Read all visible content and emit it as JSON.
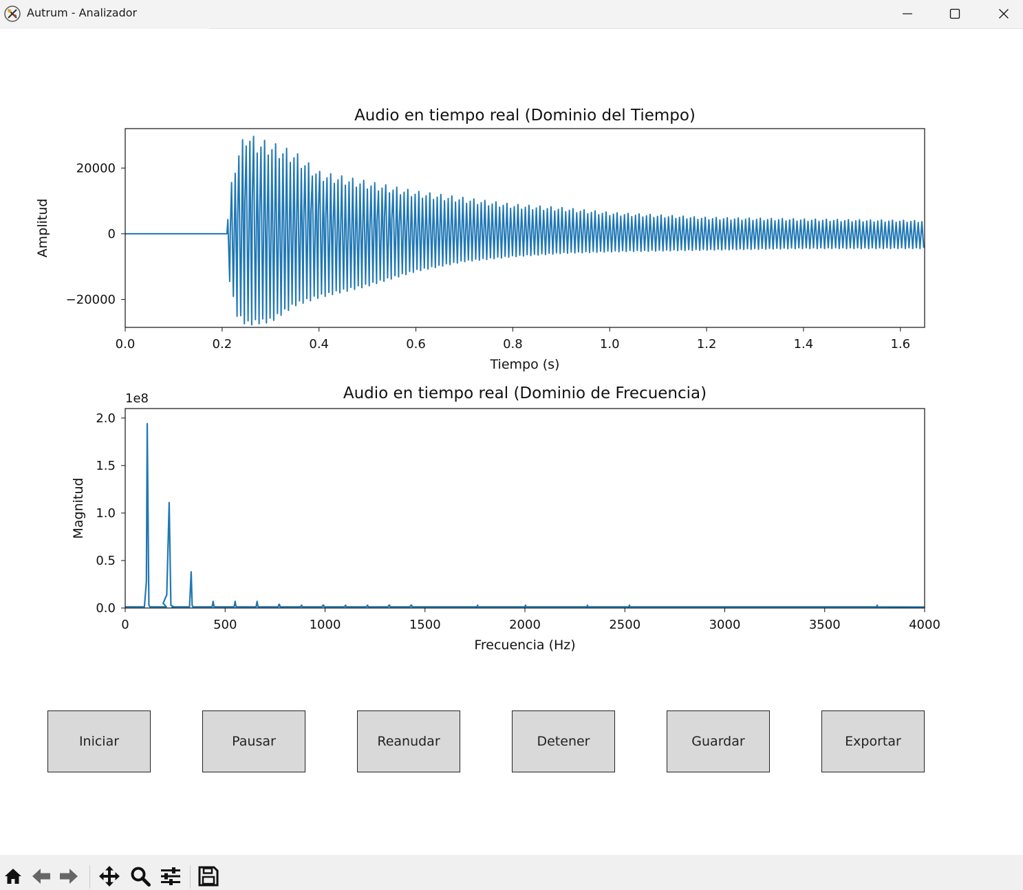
{
  "window": {
    "title": "Autrum - Analizador",
    "icon": "autrum-app-icon",
    "controls": [
      "minimize-icon",
      "maximize-icon",
      "close-icon"
    ]
  },
  "chart_data": [
    {
      "type": "line",
      "title": "Audio en tiempo real (Dominio del Tiempo)",
      "xlabel": "Tiempo (s)",
      "ylabel": "Amplitud",
      "xlim": [
        0.0,
        1.65
      ],
      "ylim": [
        -28500,
        32000
      ],
      "xticks": [
        "0.0",
        "0.2",
        "0.4",
        "0.6",
        "0.8",
        "1.0",
        "1.2",
        "1.4",
        "1.6"
      ],
      "yticks": [
        "20000",
        "0",
        "−20000"
      ],
      "ytick_values": [
        20000,
        0,
        -20000
      ],
      "xtick_values": [
        0.0,
        0.2,
        0.4,
        0.6,
        0.8,
        1.0,
        1.2,
        1.4,
        1.6
      ],
      "grid": false,
      "color": "#1f77b4",
      "onset_s": 0.21,
      "envelope": {
        "t": [
          0.0,
          0.21,
          0.215,
          0.23,
          0.25,
          0.27,
          0.3,
          0.35,
          0.4,
          0.5,
          0.6,
          0.7,
          0.8,
          0.9,
          1.0,
          1.2,
          1.4,
          1.65
        ],
        "max": [
          300,
          300,
          12000,
          24000,
          31500,
          29000,
          28000,
          25000,
          19000,
          16000,
          13000,
          11000,
          9000,
          8000,
          6500,
          5000,
          4500,
          4000
        ],
        "min": [
          -300,
          -300,
          -14000,
          -25000,
          -28000,
          -27500,
          -27000,
          -22000,
          -19500,
          -16000,
          -11500,
          -8500,
          -7000,
          -6000,
          -5500,
          -5000,
          -4500,
          -4500
        ]
      },
      "cycle_count": 190
    },
    {
      "type": "line",
      "title": "Audio en tiempo real (Dominio de Frecuencia)",
      "xlabel": "Frecuencia (Hz)",
      "ylabel": "Magnitud",
      "offset_text": "1e8",
      "xlim": [
        0,
        4000
      ],
      "ylim": [
        0,
        2.1
      ],
      "xticks": [
        "0",
        "500",
        "1000",
        "1500",
        "2000",
        "2500",
        "3000",
        "3500",
        "4000"
      ],
      "xtick_values": [
        0,
        500,
        1000,
        1500,
        2000,
        2500,
        3000,
        3500,
        4000
      ],
      "yticks": [
        "2.0",
        "1.5",
        "1.0",
        "0.5",
        "0.0"
      ],
      "ytick_values": [
        2.0,
        1.5,
        1.0,
        0.5,
        0.0
      ],
      "grid": false,
      "color": "#1f77b4",
      "peaks_hz": [
        110,
        220,
        330,
        440,
        550,
        660,
        770,
        880,
        990,
        1100,
        1210,
        1320,
        1430,
        1760,
        2000,
        2310,
        2520,
        3760
      ],
      "peaks_magnitude_1e8": [
        1.94,
        1.11,
        0.38,
        0.07,
        0.07,
        0.07,
        0.04,
        0.02,
        0.03,
        0.02,
        0.02,
        0.03,
        0.03,
        0.01,
        0.01,
        0.01,
        0.01,
        0.01
      ]
    }
  ],
  "buttons": {
    "start": "Iniciar",
    "pause": "Pausar",
    "resume": "Reanudar",
    "stop": "Detener",
    "save": "Guardar",
    "export": "Exportar"
  },
  "toolbar": {
    "icons": [
      "home-icon",
      "back-arrow-icon",
      "forward-arrow-icon",
      "pan-icon",
      "zoom-icon",
      "configure-subplots-icon",
      "save-figure-icon"
    ]
  }
}
